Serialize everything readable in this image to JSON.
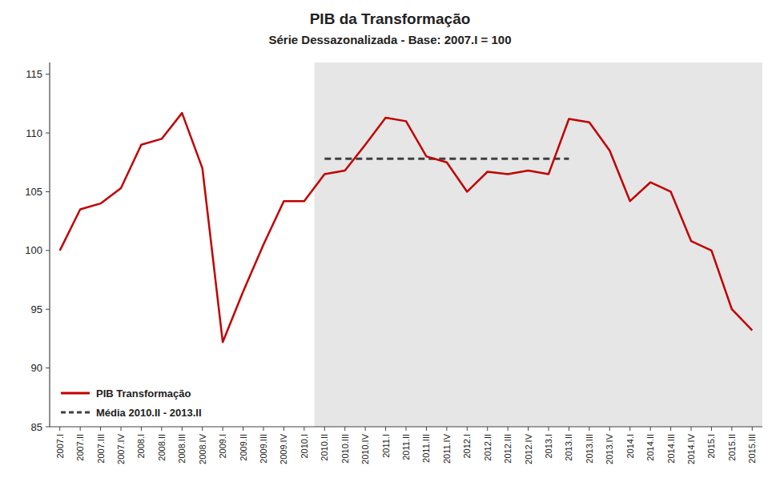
{
  "chart_data": {
    "type": "line",
    "title": "PIB da Transformação",
    "subtitle": "Série Dessazonalizada - Base: 2007.I = 100",
    "categories": [
      "2007.I",
      "2007.II",
      "2007.III",
      "2007.IV",
      "2008.I",
      "2008.II",
      "2008.III",
      "2008.IV",
      "2009.I",
      "2009.II",
      "2009.III",
      "2009.IV",
      "2010.I",
      "2010.II",
      "2010.III",
      "2010.IV",
      "2011.I",
      "2011.II",
      "2011.III",
      "2011.IV",
      "2012.I",
      "2012.II",
      "2012.III",
      "2012.IV",
      "2013.I",
      "2013.II",
      "2013.III",
      "2013.IV",
      "2014.I",
      "2014.II",
      "2014.III",
      "2014.IV",
      "2015.I",
      "2015.II",
      "2015.III"
    ],
    "series": [
      {
        "name": "PIB Transformação",
        "color": "#c00000",
        "line_style": "solid",
        "values": [
          100.0,
          103.5,
          104.0,
          105.3,
          109.0,
          109.5,
          111.7,
          107.0,
          92.2,
          96.5,
          100.5,
          104.2,
          104.2,
          106.5,
          106.8,
          109.0,
          111.3,
          111.0,
          108.0,
          107.5,
          105.0,
          106.7,
          106.5,
          106.8,
          106.5,
          111.2,
          110.9,
          108.5,
          104.2,
          105.8,
          105.0,
          100.8,
          100.0,
          95.0,
          93.2
        ]
      },
      {
        "name": "Média 2010.II - 2013.II",
        "color": "#404040",
        "line_style": "dashed",
        "values": [
          null,
          null,
          null,
          null,
          null,
          null,
          null,
          null,
          null,
          null,
          null,
          null,
          null,
          107.8,
          107.8,
          107.8,
          107.8,
          107.8,
          107.8,
          107.8,
          107.8,
          107.8,
          107.8,
          107.8,
          107.8,
          107.8,
          null,
          null,
          null,
          null,
          null,
          null,
          null,
          null,
          null
        ]
      }
    ],
    "ylim": [
      85,
      116
    ],
    "yticks": [
      85,
      90,
      95,
      100,
      105,
      110,
      115
    ],
    "grid": false,
    "legend": "lower left"
  }
}
